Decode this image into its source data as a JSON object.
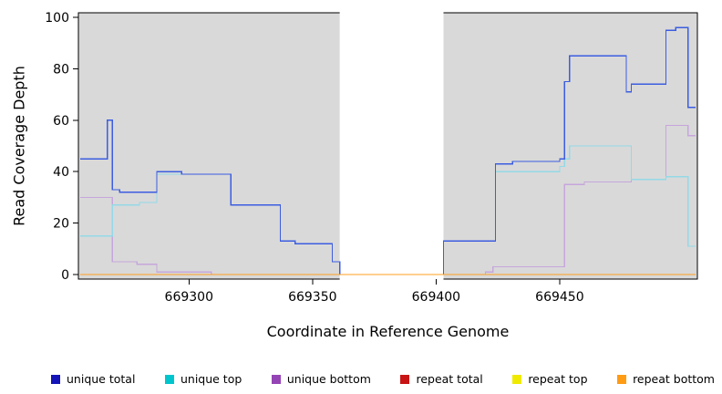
{
  "chart_data": {
    "type": "line",
    "title": "",
    "xlabel": "Coordinate in Reference Genome",
    "ylabel": "Read Coverage Depth",
    "xlim": [
      669256,
      669505
    ],
    "ylim": [
      0,
      100
    ],
    "xticks": [
      669300,
      669350,
      669400,
      669450
    ],
    "yticks": [
      0,
      20,
      40,
      60,
      80,
      100
    ],
    "plot_background": "#d9d9d9",
    "page_background": "#ffffff",
    "axis_color": "#000000",
    "grid": "off",
    "step_interpolation": true,
    "legend_position": "bottom",
    "gap_region": {
      "x0": 669361,
      "x1": 669403,
      "color": "#ffffff"
    },
    "series": [
      {
        "name": "unique total",
        "marker_color": "#1414b8",
        "line_color": "#3c5de0",
        "points": [
          [
            669256,
            45
          ],
          [
            669267,
            60
          ],
          [
            669269,
            33
          ],
          [
            669272,
            32
          ],
          [
            669287,
            40
          ],
          [
            669297,
            39
          ],
          [
            669317,
            27
          ],
          [
            669337,
            13
          ],
          [
            669343,
            12
          ],
          [
            669358,
            5
          ],
          [
            669361,
            0
          ],
          [
            669403,
            13
          ],
          [
            669424,
            43
          ],
          [
            669431,
            44
          ],
          [
            669450,
            45
          ],
          [
            669452,
            75
          ],
          [
            669454,
            85
          ],
          [
            669477,
            71
          ],
          [
            669479,
            74
          ],
          [
            669493,
            95
          ],
          [
            669497,
            96
          ],
          [
            669502,
            65
          ]
        ]
      },
      {
        "name": "unique top",
        "marker_color": "#00c5cd",
        "line_color": "#94d9e6",
        "points": [
          [
            669256,
            15
          ],
          [
            669269,
            27
          ],
          [
            669280,
            28
          ],
          [
            669287,
            39
          ],
          [
            669317,
            27
          ],
          [
            669337,
            13
          ],
          [
            669343,
            12
          ],
          [
            669358,
            5
          ],
          [
            669361,
            0
          ],
          [
            669403,
            13
          ],
          [
            669424,
            40
          ],
          [
            669450,
            42
          ],
          [
            669452,
            45
          ],
          [
            669454,
            50
          ],
          [
            669479,
            37
          ],
          [
            669493,
            38
          ],
          [
            669502,
            11
          ]
        ]
      },
      {
        "name": "unique bottom",
        "marker_color": "#9544b5",
        "line_color": "#c6a6dc",
        "points": [
          [
            669256,
            30
          ],
          [
            669269,
            5
          ],
          [
            669279,
            4
          ],
          [
            669287,
            1
          ],
          [
            669309,
            0
          ],
          [
            669420,
            1
          ],
          [
            669423,
            3
          ],
          [
            669452,
            35
          ],
          [
            669460,
            36
          ],
          [
            669479,
            37
          ],
          [
            669493,
            58
          ],
          [
            669502,
            54
          ]
        ]
      },
      {
        "name": "repeat total",
        "marker_color": "#c81414",
        "line_color": "#c81414",
        "points": [
          [
            669256,
            0
          ]
        ]
      },
      {
        "name": "repeat top",
        "marker_color": "#f0ea00",
        "line_color": "#f0ea00",
        "points": [
          [
            669256,
            0
          ]
        ]
      },
      {
        "name": "repeat bottom",
        "marker_color": "#ff9c14",
        "line_color": "#ffa01e",
        "points": [
          [
            669256,
            0
          ]
        ]
      }
    ]
  }
}
